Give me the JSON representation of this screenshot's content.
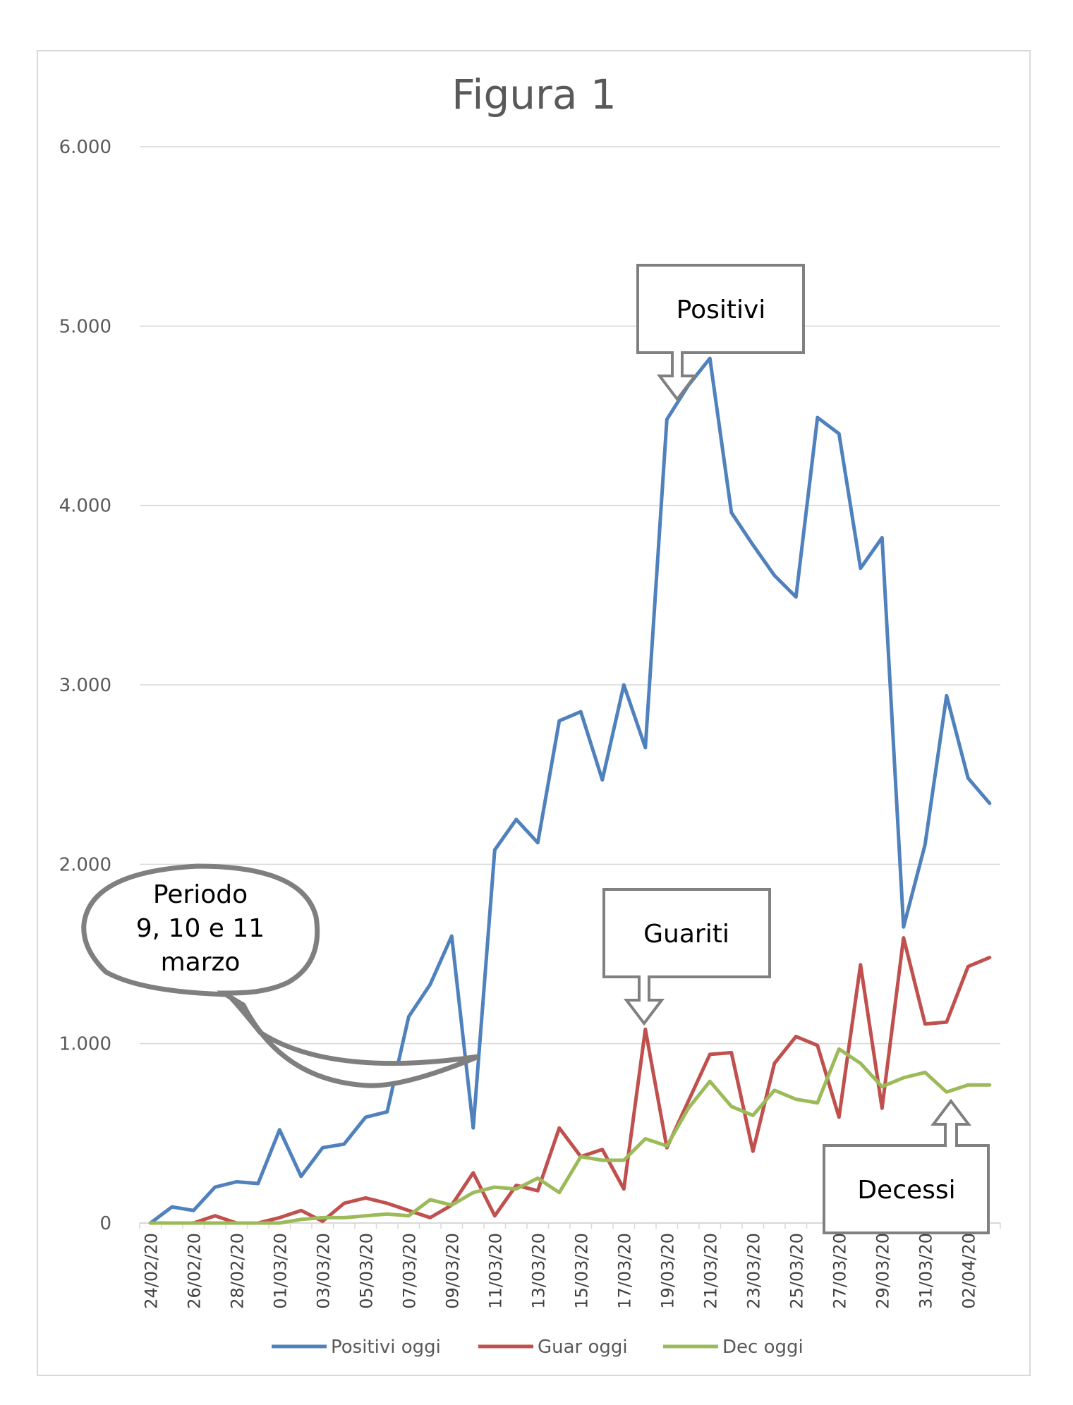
{
  "chart_data": {
    "type": "line",
    "title": "Figura 1",
    "xlabel": "",
    "ylabel": "",
    "ylim": [
      0,
      6000
    ],
    "y_ticks": [
      0,
      1000,
      2000,
      3000,
      4000,
      5000,
      6000
    ],
    "y_tick_labels": [
      "0",
      "1.000",
      "2.000",
      "3.000",
      "4.000",
      "5.000",
      "6.000"
    ],
    "grid": true,
    "legend": "bottom",
    "x": [
      "24/02/20",
      "25/02/20",
      "26/02/20",
      "27/02/20",
      "28/02/20",
      "29/02/20",
      "01/03/20",
      "02/03/20",
      "03/03/20",
      "04/03/20",
      "05/03/20",
      "06/03/20",
      "07/03/20",
      "08/03/20",
      "09/03/20",
      "10/03/20",
      "11/03/20",
      "12/03/20",
      "13/03/20",
      "14/03/20",
      "15/03/20",
      "16/03/20",
      "17/03/20",
      "18/03/20",
      "19/03/20",
      "20/03/20",
      "21/03/20",
      "22/03/20",
      "23/03/20",
      "24/03/20",
      "25/03/20",
      "26/03/20",
      "27/03/20",
      "28/03/20",
      "29/03/20",
      "30/03/20",
      "31/03/20",
      "01/04/20",
      "02/04/20",
      "03/04/20"
    ],
    "x_tick_labels": [
      "24/02/20",
      "26/02/20",
      "28/02/20",
      "01/03/20",
      "03/03/20",
      "05/03/20",
      "07/03/20",
      "09/03/20",
      "11/03/20",
      "13/03/20",
      "15/03/20",
      "17/03/20",
      "19/03/20",
      "21/03/20",
      "23/03/20",
      "25/03/20",
      "27/03/20",
      "29/03/20",
      "31/03/20",
      "02/04/20"
    ],
    "series": [
      {
        "name": "Positivi oggi",
        "color": "#4F81BD",
        "values": [
          0,
          90,
          70,
          200,
          230,
          220,
          520,
          260,
          420,
          440,
          590,
          620,
          1150,
          1330,
          1600,
          530,
          2080,
          2250,
          2120,
          2800,
          2850,
          2470,
          3000,
          2650,
          4480,
          4670,
          4820,
          3960,
          3780,
          3610,
          3490,
          4490,
          4400,
          3650,
          3820,
          1650,
          2110,
          2940,
          2480,
          2340
        ]
      },
      {
        "name": "Guar oggi",
        "color": "#C0504D",
        "values": [
          0,
          0,
          0,
          40,
          0,
          0,
          30,
          70,
          10,
          110,
          140,
          110,
          70,
          30,
          100,
          280,
          40,
          210,
          180,
          530,
          370,
          410,
          190,
          1080,
          420,
          680,
          940,
          950,
          400,
          890,
          1040,
          990,
          590,
          1440,
          640,
          1590,
          1110,
          1120,
          1430,
          1480
        ]
      },
      {
        "name": "Dec oggi",
        "color": "#9BBB59",
        "values": [
          0,
          0,
          0,
          0,
          0,
          0,
          0,
          20,
          30,
          30,
          40,
          50,
          40,
          130,
          100,
          170,
          200,
          190,
          250,
          170,
          370,
          350,
          350,
          470,
          430,
          640,
          790,
          650,
          600,
          740,
          690,
          670,
          970,
          890,
          760,
          810,
          840,
          730,
          770,
          770
        ]
      }
    ],
    "annotations": [
      {
        "text": "Positivi",
        "target_series": "Positivi oggi",
        "target_x": "20/03/20"
      },
      {
        "text": "Guariti",
        "target_series": "Guar oggi",
        "target_x": "18/03/20"
      },
      {
        "text": "Decessi",
        "target_series": "Dec oggi",
        "target_x": "01/04/20"
      },
      {
        "text_lines": [
          "Periodo",
          "9, 10 e 11",
          "marzo"
        ],
        "target_series": "Positivi oggi",
        "target_x": "10/03/20"
      }
    ]
  }
}
